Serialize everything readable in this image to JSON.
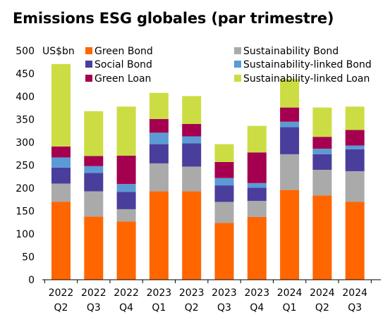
{
  "chart_data": {
    "type": "bar",
    "stacked": true,
    "title": "Emissions ESG globales (par trimestre)",
    "unit_label": "US$bn",
    "xlabel": "",
    "ylabel": "",
    "ylim": [
      0,
      500
    ],
    "yticks": [
      0,
      50,
      100,
      150,
      200,
      250,
      300,
      350,
      400,
      450,
      500
    ],
    "grid": false,
    "legend_position": "top",
    "categories": [
      [
        "2022",
        "Q2"
      ],
      [
        "2022",
        "Q3"
      ],
      [
        "2022",
        "Q4"
      ],
      [
        "2023",
        "Q1"
      ],
      [
        "2023",
        "Q2"
      ],
      [
        "2023",
        "Q3"
      ],
      [
        "2023",
        "Q4"
      ],
      [
        "2024",
        "Q1"
      ],
      [
        "2024",
        "Q2"
      ],
      [
        "2024",
        "Q3"
      ]
    ],
    "series": [
      {
        "name": "Green Bond",
        "color": "#ff6600",
        "values": [
          170,
          138,
          127,
          193,
          193,
          124,
          137,
          196,
          184,
          170
        ]
      },
      {
        "name": "Sustainability Bond",
        "color": "#aaaaaa",
        "values": [
          40,
          55,
          27,
          61,
          54,
          46,
          35,
          78,
          56,
          67
        ]
      },
      {
        "name": "Social Bond",
        "color": "#4a3e9c",
        "values": [
          35,
          40,
          38,
          42,
          51,
          36,
          29,
          59,
          34,
          48
        ]
      },
      {
        "name": "Sustainability-linked Bond",
        "color": "#5b9bd5",
        "values": [
          22,
          15,
          17,
          25,
          15,
          16,
          10,
          12,
          12,
          8
        ]
      },
      {
        "name": "Green Loan",
        "color": "#a50050",
        "values": [
          24,
          22,
          62,
          30,
          27,
          35,
          67,
          31,
          26,
          34
        ]
      },
      {
        "name": "Sustainability-linked Loan",
        "color": "#ccdd44",
        "values": [
          180,
          98,
          107,
          57,
          61,
          39,
          58,
          62,
          64,
          51
        ]
      }
    ]
  }
}
